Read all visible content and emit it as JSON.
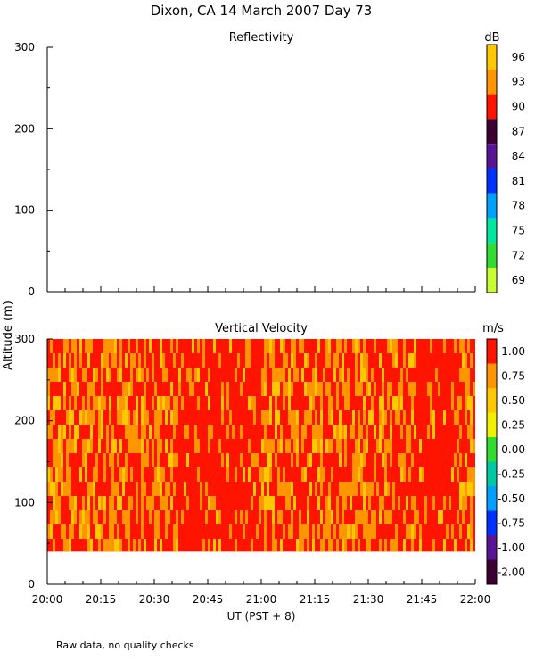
{
  "page": {
    "title": "Dixon, CA 14 March 2007  Day  73",
    "y_axis_label": "Altitude (m)",
    "x_axis_label": "UT  (PST + 8)",
    "footnote": "Raw data, no quality checks"
  },
  "chart_data": [
    {
      "type": "heatmap",
      "title": "Reflectivity",
      "xlabel": "UT  (PST + 8)",
      "ylabel": "Altitude (m)",
      "xlim": [
        "20:00",
        "22:00"
      ],
      "ylim": [
        0,
        300
      ],
      "x_ticks": [
        "20:00",
        "20:15",
        "20:30",
        "20:45",
        "21:00",
        "21:15",
        "21:30",
        "21:45",
        "22:00"
      ],
      "y_ticks": [
        0,
        100,
        200,
        300
      ],
      "data_present": false,
      "colorbar": {
        "unit": "dB",
        "labels": [
          "96",
          "93",
          "90",
          "87",
          "84",
          "81",
          "78",
          "75",
          "72",
          "69"
        ],
        "colors": [
          "#ffc800",
          "#ff9600",
          "#ff1400",
          "#3c0032",
          "#5a1496",
          "#0032ff",
          "#00a0ff",
          "#00e6a0",
          "#32dc32",
          "#c8ff32"
        ]
      }
    },
    {
      "type": "heatmap",
      "title": "Vertical Velocity",
      "xlabel": "UT  (PST + 8)",
      "ylabel": "Altitude (m)",
      "xlim": [
        "20:00",
        "22:00"
      ],
      "ylim": [
        0,
        300
      ],
      "x_ticks": [
        "20:00",
        "20:15",
        "20:30",
        "20:45",
        "21:00",
        "21:15",
        "21:30",
        "21:45",
        "22:00"
      ],
      "y_ticks": [
        0,
        100,
        200,
        300
      ],
      "data_present": true,
      "data_altitude_range": [
        40,
        300
      ],
      "dominant_values": [
        "1.00",
        "0.75",
        "0.50"
      ],
      "colorbar": {
        "unit": "m/s",
        "labels": [
          "1.00",
          "0.75",
          "0.50",
          "0.25",
          "0.00",
          "-0.25",
          "-0.50",
          "-0.75",
          "-1.00",
          "-2.00"
        ],
        "colors": [
          "#ff1400",
          "#ff9600",
          "#ffc800",
          "#f0f000",
          "#32dc32",
          "#00c8a0",
          "#00a0ff",
          "#0032ff",
          "#5a1496",
          "#3c0032"
        ]
      }
    }
  ]
}
